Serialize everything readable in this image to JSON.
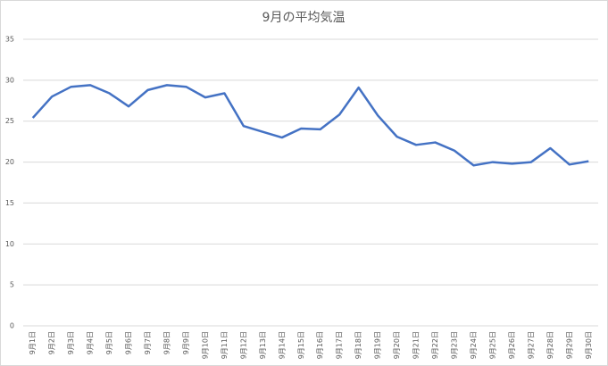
{
  "chart_data": {
    "type": "line",
    "title": "9月の平均気温",
    "categories": [
      "9月1日",
      "9月2日",
      "9月3日",
      "9月4日",
      "9月5日",
      "9月6日",
      "9月7日",
      "9月8日",
      "9月9日",
      "9月10日",
      "9月11日",
      "9月12日",
      "9月13日",
      "9月14日",
      "9月15日",
      "9月16日",
      "9月17日",
      "9月18日",
      "9月19日",
      "9月20日",
      "9月21日",
      "9月22日",
      "9月23日",
      "9月24日",
      "9月25日",
      "9月26日",
      "9月27日",
      "9月28日",
      "9月29日",
      "9月30日"
    ],
    "values": [
      25.4,
      28.0,
      29.2,
      29.4,
      28.4,
      26.8,
      28.8,
      29.4,
      29.2,
      27.9,
      28.4,
      24.4,
      23.7,
      23.0,
      24.1,
      24.0,
      25.8,
      29.1,
      25.7,
      23.1,
      22.1,
      22.4,
      21.4,
      19.6,
      20.0,
      19.8,
      20.0,
      21.7,
      19.7,
      20.1
    ],
    "color": "#4472c4",
    "ylim": [
      0,
      35
    ],
    "yticks": [
      0,
      5,
      10,
      15,
      20,
      25,
      30,
      35
    ],
    "grid": true
  }
}
